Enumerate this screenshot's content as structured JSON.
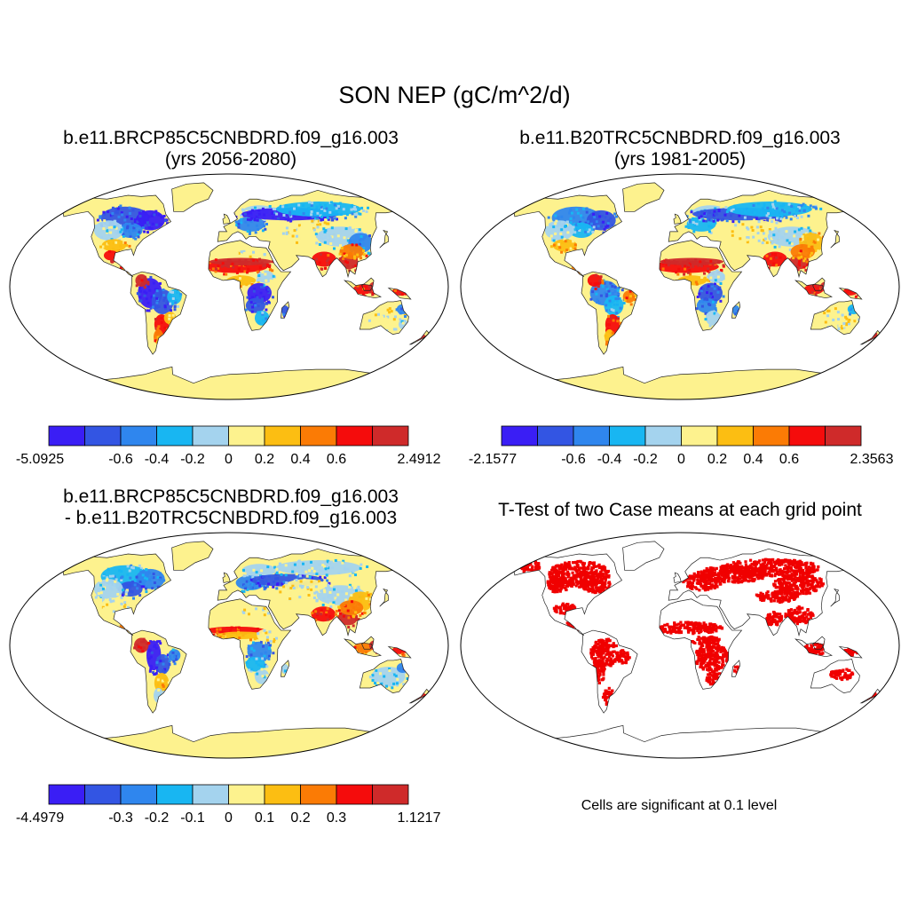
{
  "main_title": "SON NEP (gC/m^2/d)",
  "panels": [
    {
      "title_line1": "b.e11.BRCP85C5CNBDRD.f09_g16.003",
      "title_line2": "(yrs 2056-2080)",
      "colorbar": {
        "colors": [
          "#3a1ef5",
          "#3355e3",
          "#2f86ee",
          "#18b6f2",
          "#a4d3ee",
          "#fdf28e",
          "#fcbe12",
          "#fb7b05",
          "#f50c0c",
          "#cf2a2a"
        ],
        "labels": [
          "-5.0925",
          "-0.6",
          "-0.4",
          "-0.2",
          "0",
          "0.2",
          "0.4",
          "0.6",
          "2.4912"
        ]
      }
    },
    {
      "title_line1": "b.e11.B20TRC5CNBDRD.f09_g16.003",
      "title_line2": "(yrs 1981-2005)",
      "colorbar": {
        "colors": [
          "#3a1ef5",
          "#3355e3",
          "#2f86ee",
          "#18b6f2",
          "#a4d3ee",
          "#fdf28e",
          "#fcbe12",
          "#fb7b05",
          "#f50c0c",
          "#cf2a2a"
        ],
        "labels": [
          "-2.1577",
          "-0.6",
          "-0.4",
          "-0.2",
          "0",
          "0.2",
          "0.4",
          "0.6",
          "2.3563"
        ]
      }
    },
    {
      "title_line1": "b.e11.BRCP85C5CNBDRD.f09_g16.003",
      "title_line2": "- b.e11.B20TRC5CNBDRD.f09_g16.003",
      "colorbar": {
        "colors": [
          "#3a1ef5",
          "#3355e3",
          "#2f86ee",
          "#18b6f2",
          "#a4d3ee",
          "#fdf28e",
          "#fcbe12",
          "#fb7b05",
          "#f50c0c",
          "#cf2a2a"
        ],
        "labels": [
          "-4.4979",
          "-0.3",
          "-0.2",
          "-0.1",
          "0",
          "0.1",
          "0.2",
          "0.3",
          "1.1217"
        ]
      }
    },
    {
      "title_line1": "T-Test of two Case means at each grid point",
      "note": "Cells are significant at 0.1 level",
      "sig_color": "#f00000"
    }
  ]
}
